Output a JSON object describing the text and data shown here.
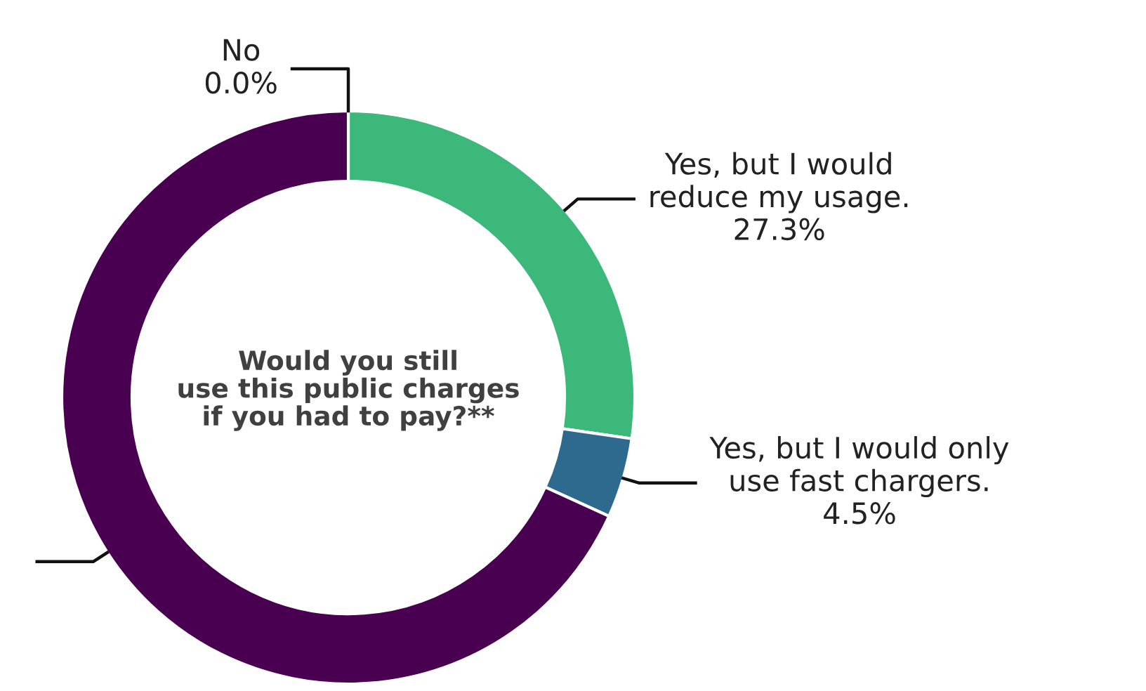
{
  "chart_data": {
    "type": "donut",
    "title": "Would you still use this public charges if you had to pay?**",
    "categories": [
      "No",
      "Yes, but I would reduce my usage.",
      "Yes, but I would only use fast chargers.",
      null
    ],
    "values": [
      0.0,
      27.3,
      4.5,
      68.2
    ],
    "value_labels": [
      "0.0%",
      "27.3%",
      "4.5%",
      null
    ],
    "colors": [
      "#3c3c3c",
      "#3bb87a",
      "#2e6a8e",
      "#4a0050"
    ]
  }
}
